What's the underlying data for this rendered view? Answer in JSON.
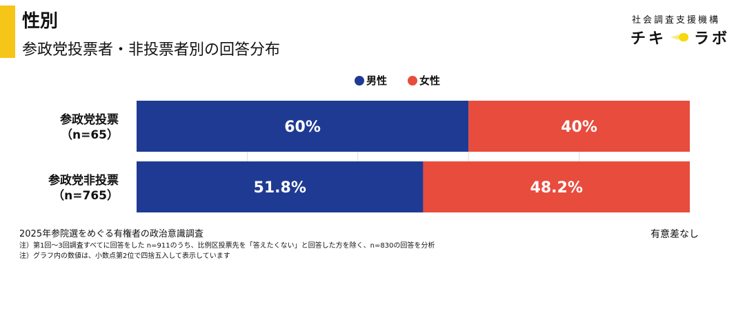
{
  "header": {
    "title": "性別",
    "subtitle": "参政党投票者・非投票者別の回答分布"
  },
  "logo": {
    "org": "社会調査支援機構",
    "name_left": "チキ",
    "name_right": "ラボ"
  },
  "chart_data": {
    "type": "bar",
    "stacked": true,
    "orientation": "horizontal",
    "categories": [
      [
        "参政党投票",
        "（n=65）"
      ],
      [
        "参政党非投票",
        "（n=765）"
      ]
    ],
    "series": [
      {
        "name": "男性",
        "color": "#1f3a93",
        "values": [
          60,
          51.8
        ],
        "labels": [
          "60%",
          "51.8%"
        ]
      },
      {
        "name": "女性",
        "color": "#e84c3d",
        "values": [
          40,
          48.2
        ],
        "labels": [
          "40%",
          "48.2%"
        ]
      }
    ],
    "xlim": [
      0,
      100
    ],
    "grid": true,
    "legend": "top-center"
  },
  "notes": {
    "survey": "2025年参院選をめぐる有権者の政治意識調査",
    "note1": "注）第1回～3回調査すべてに回答をした n=911のうち、比例区投票先を「答えたくない」と回答した方を除く、n=830の回答を分析",
    "note2": "注）グラフ内の数値は、小数点第2位で四捨五入して表示しています",
    "significance": "有意差なし"
  }
}
